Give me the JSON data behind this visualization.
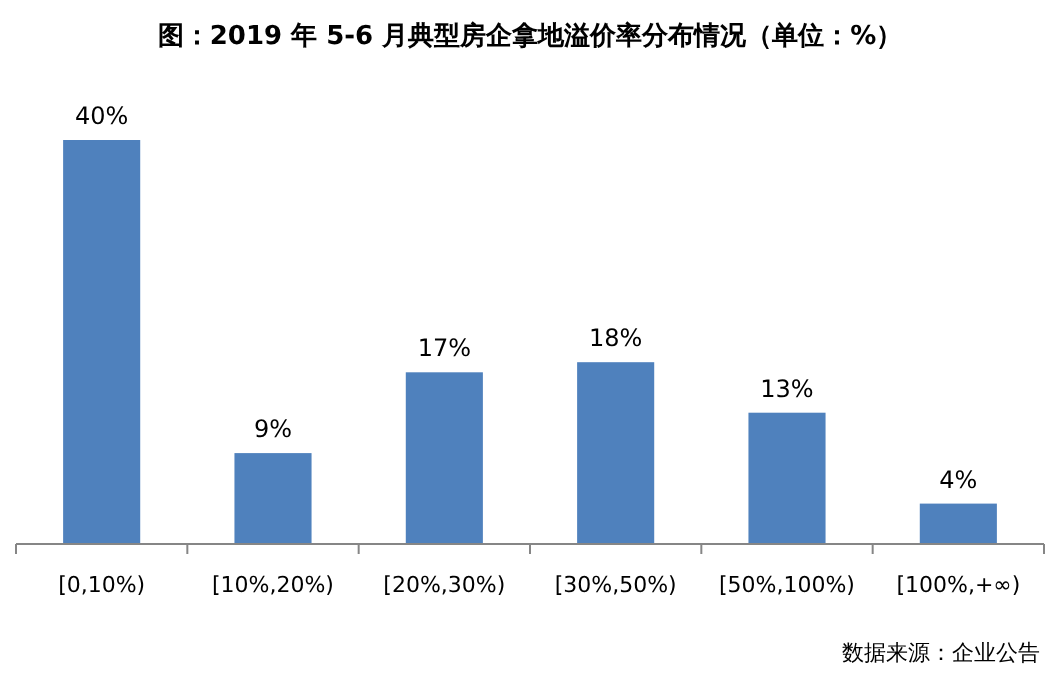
{
  "chart_data": {
    "type": "bar",
    "title": "图：2019 年 5-6 月典型房企拿地溢价率分布情况（单位：%）",
    "categories": [
      "[0,10%)",
      "[10%,20%)",
      "[20%,30%)",
      "[30%,50%)",
      "[50%,100%)",
      "[100%,+∞)"
    ],
    "values": [
      40,
      9,
      17,
      18,
      13,
      4
    ],
    "value_labels": [
      "40%",
      "9%",
      "17%",
      "18%",
      "13%",
      "4%"
    ],
    "color": "#4f81bd",
    "annotations": [
      "数据来源：企业公告"
    ]
  }
}
